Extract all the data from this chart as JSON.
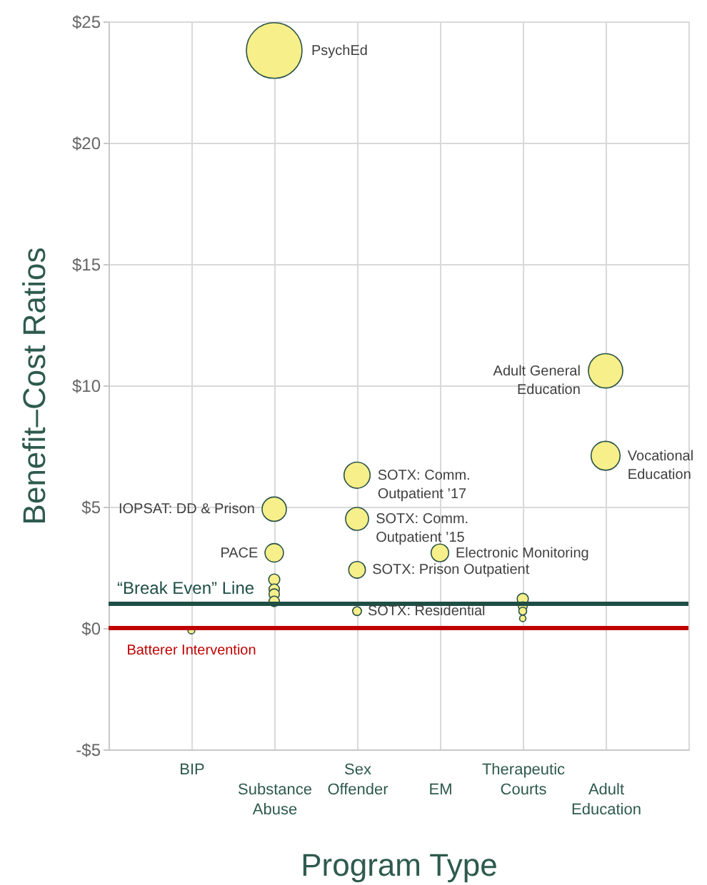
{
  "chart_data": {
    "type": "bubble",
    "xlabel": "Program Type",
    "ylabel": "Benefit–Cost Ratios",
    "categories": [
      "BIP",
      "Substance Abuse",
      "Sex Offender",
      "EM",
      "Therapeutic Courts",
      "Adult Education"
    ],
    "ylim": [
      -5,
      25
    ],
    "yticks": [
      {
        "value": -5,
        "label": "-$5"
      },
      {
        "value": 0,
        "label": "$0"
      },
      {
        "value": 5,
        "label": "$5"
      },
      {
        "value": 10,
        "label": "$10"
      },
      {
        "value": 15,
        "label": "$15"
      },
      {
        "value": 20,
        "label": "$20"
      },
      {
        "value": 25,
        "label": "$25"
      }
    ],
    "grid": true,
    "ref_lines": [
      {
        "axis": "y",
        "value": 1,
        "label": "“Break Even” Line",
        "color": "#1f4e45"
      },
      {
        "axis": "y",
        "value": 0,
        "label": null,
        "color": "#c00000"
      }
    ],
    "series": [
      {
        "name": "PsychEd",
        "color": "#f7ef8a",
        "x": [
          "Substance Abuse"
        ],
        "values": [
          23.8
        ],
        "sizes": [
          1
        ]
      },
      {
        "name": "IOPSAT: DD & Prison",
        "color": "#f7ef8a",
        "x": [
          "Substance Abuse"
        ],
        "values": [
          4.9
        ],
        "sizes": [
          0.19
        ]
      },
      {
        "name": "PACE",
        "color": "#f7ef8a",
        "x": [
          "Substance Abuse"
        ],
        "values": [
          3.1
        ],
        "sizes": [
          0.11
        ]
      },
      {
        "color": "#f7ef8a",
        "x": [
          "Substance Abuse",
          "Substance Abuse",
          "Substance Abuse",
          "Substance Abuse"
        ],
        "values": [
          2.0,
          1.6,
          1.4,
          1.1
        ],
        "sizes": [
          0.04,
          0.035,
          0.035,
          0.035
        ]
      },
      {
        "name": "Batterer Intervention",
        "color": "#f7ef8a",
        "x": [
          "BIP"
        ],
        "values": [
          -0.1
        ],
        "sizes": [
          0.015
        ]
      },
      {
        "name": "SOTX: Comm. Outpatient ’17",
        "color": "#f7ef8a",
        "x": [
          "Sex Offender"
        ],
        "values": [
          6.3
        ],
        "sizes": [
          0.22
        ]
      },
      {
        "name": "SOTX: Comm. Outpatient ’15",
        "color": "#f7ef8a",
        "x": [
          "Sex Offender"
        ],
        "values": [
          4.5
        ],
        "sizes": [
          0.17
        ]
      },
      {
        "name": "SOTX: Prison Outpatient",
        "color": "#f7ef8a",
        "x": [
          "Sex Offender"
        ],
        "values": [
          2.4
        ],
        "sizes": [
          0.09
        ]
      },
      {
        "name": "SOTX: Residential",
        "color": "#f7ef8a",
        "x": [
          "Sex Offender"
        ],
        "values": [
          0.7
        ],
        "sizes": [
          0.025
        ]
      },
      {
        "name": "Electronic Monitoring",
        "color": "#f7ef8a",
        "x": [
          "EM"
        ],
        "values": [
          3.1
        ],
        "sizes": [
          0.1
        ]
      },
      {
        "color": "#f7ef8a",
        "x": [
          "Therapeutic Courts",
          "Therapeutic Courts",
          "Therapeutic Courts",
          "Therapeutic Courts"
        ],
        "values": [
          1.2,
          0.9,
          0.7,
          0.4
        ],
        "sizes": [
          0.04,
          0.025,
          0.02,
          0.013
        ]
      },
      {
        "name": "Adult General Education",
        "color": "#f7ef8a",
        "x": [
          "Adult Education"
        ],
        "values": [
          10.6
        ],
        "sizes": [
          0.38
        ]
      },
      {
        "name": "Vocational Education",
        "color": "#f7ef8a",
        "x": [
          "Adult Education"
        ],
        "values": [
          7.1
        ],
        "sizes": [
          0.27
        ]
      }
    ]
  }
}
